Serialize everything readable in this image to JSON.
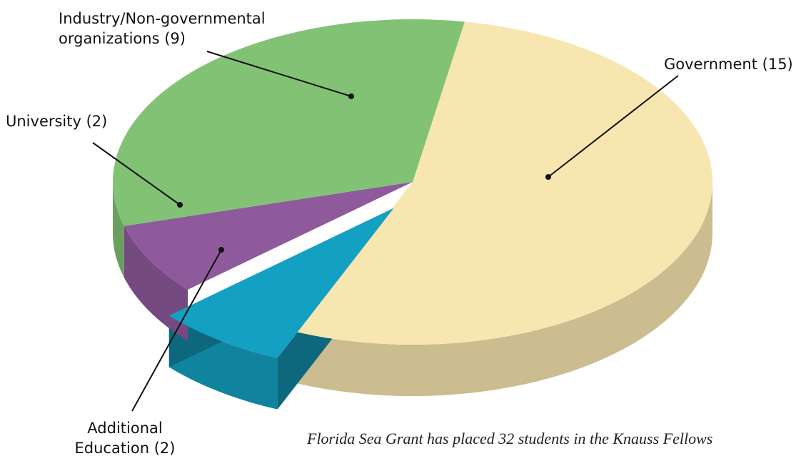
{
  "chart_data": {
    "type": "pie",
    "categories": [
      "Government (15)",
      "Additional Education (2)",
      "University (2)",
      "Industry/Non-governmental organizations (9)"
    ],
    "values": [
      15,
      2,
      2,
      9
    ],
    "colors": [
      "#f8e6b0",
      "#14a0c2",
      "#8e5a9c",
      "#82c274"
    ],
    "caption": "Florida Sea Grant has placed 32 students in the Knauss Fellows"
  }
}
